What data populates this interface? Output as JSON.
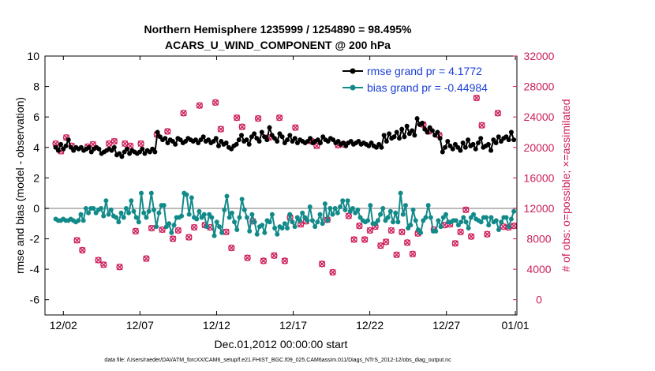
{
  "chart_data": {
    "type": "line",
    "title": "Northern Hemisphere 1235999 / 1254890 = 98.495%",
    "subtitle": "ACARS_U_WIND_COMPONENT @ 200 hPa",
    "xlabel": "Dec.01,2012 00:00:00 start",
    "ylabel_left": "rmse and bias (model - observation)",
    "ylabel_right": "# of obs: o=possible; ×=assimilated",
    "footnote": "data file: /Users/raeder/DAI/ATM_forcXX/CAM6_setup/f.e21.FHIST_BGC.f09_025.CAM6assim.011/Diags_NTrS_2012-12/obs_diag_output.nc",
    "xlim": [
      0.3,
      31.1
    ],
    "ylim_left": [
      -7,
      10
    ],
    "ylim_right": [
      -2000,
      32000
    ],
    "x_ticks": [
      1.5,
      6.5,
      11.5,
      16.5,
      21.5,
      26.5,
      31
    ],
    "x_tick_labels": [
      "12/02",
      "12/07",
      "12/12",
      "12/17",
      "12/22",
      "12/27",
      "01/01"
    ],
    "y_left_ticks": [
      -6,
      -4,
      -2,
      0,
      2,
      4,
      6,
      8,
      10
    ],
    "y_right_ticks": [
      0,
      4000,
      8000,
      12000,
      16000,
      20000,
      24000,
      28000,
      32000
    ],
    "zero_line": 0,
    "colors": {
      "rmse": "#000000",
      "bias": "#138a8a",
      "obs": "#cc1e5c",
      "zero": "#bbbbbb",
      "legend_text": "#1a3ed6"
    },
    "series": [
      {
        "name": "rmse",
        "legend": "rmse grand pr = 4.1772",
        "axis": "left",
        "values": [
          4.0,
          3.8,
          4.2,
          3.9,
          4.1,
          4.5,
          4.0,
          3.8,
          4.0,
          3.9,
          4.0,
          3.8,
          3.9,
          4.0,
          3.7,
          3.9,
          4.0,
          3.9,
          3.6,
          3.7,
          3.8,
          3.9,
          3.8,
          4.0,
          3.5,
          3.6,
          3.4,
          3.7,
          3.9,
          3.6,
          3.8,
          3.7,
          3.6,
          3.7,
          3.9,
          3.6,
          3.8,
          3.7,
          3.9,
          3.7,
          5.0,
          4.7,
          4.5,
          4.6,
          4.3,
          4.5,
          4.4,
          4.2,
          4.6,
          4.5,
          4.3,
          4.4,
          4.6,
          4.5,
          4.4,
          4.5,
          4.3,
          4.5,
          4.7,
          4.4,
          4.5,
          4.3,
          4.4,
          4.6,
          4.1,
          4.4,
          4.2,
          4.3,
          4.0,
          3.9,
          4.1,
          4.2,
          4.5,
          4.8,
          4.4,
          4.5,
          4.2,
          4.7,
          4.9,
          4.6,
          4.4,
          5.0,
          4.7,
          4.5,
          5.3,
          4.8,
          4.6,
          4.4,
          4.9,
          4.7,
          4.3,
          4.5,
          4.8,
          4.4,
          4.6,
          4.3,
          4.5,
          4.4,
          4.3,
          4.4,
          4.6,
          4.3,
          4.4,
          4.5,
          4.3,
          4.7,
          4.5,
          4.4,
          4.6,
          4.5,
          4.3,
          4.4,
          4.2,
          4.3,
          4.1,
          4.3,
          4.4,
          4.2,
          4.3,
          4.4,
          4.2,
          4.3,
          4.2,
          4.1,
          4.3,
          4.1,
          4.0,
          4.2,
          4.0,
          4.8,
          4.4,
          4.9,
          4.6,
          4.7,
          5.0,
          4.6,
          5.2,
          4.7,
          5.4,
          4.9,
          5.1,
          4.8,
          5.9,
          5.5,
          5.6,
          5.2,
          5.0,
          5.3,
          5.1,
          4.8,
          5.0,
          4.6,
          3.7,
          4.0,
          4.4,
          4.1,
          3.9,
          4.2,
          4.0,
          3.8,
          4.3,
          4.0,
          4.5,
          4.1,
          4.2,
          3.9,
          4.3,
          4.6,
          4.0,
          4.1,
          4.2,
          3.8,
          4.5,
          4.3,
          4.7,
          4.4,
          4.6,
          4.7,
          4.5,
          5.0,
          4.5
        ]
      },
      {
        "name": "bias",
        "legend": "bias grand pr = -0.44984",
        "axis": "left",
        "values": [
          -0.7,
          -0.8,
          -0.8,
          -0.7,
          -0.8,
          -0.8,
          -0.7,
          -0.8,
          -0.9,
          -0.8,
          -0.4,
          -0.8,
          0.0,
          -0.3,
          0.0,
          0.0,
          -0.3,
          -0.1,
          0.0,
          -0.5,
          0.5,
          -0.4,
          -0.1,
          -0.5,
          -0.6,
          -0.9,
          -0.3,
          -0.6,
          0.0,
          -0.3,
          0.5,
          -0.2,
          -0.6,
          -0.9,
          1.0,
          -0.3,
          -0.6,
          -0.2,
          1.0,
          -0.1,
          -1.2,
          -0.3,
          0.2,
          0.2,
          -1.2,
          -1.0,
          -1.6,
          -1.1,
          -0.6,
          -0.6,
          -0.5,
          1.0,
          0.9,
          -0.4,
          0.7,
          -0.6,
          -0.7,
          -0.2,
          -0.6,
          -0.4,
          -1.2,
          -0.4,
          -0.6,
          -1.8,
          -0.9,
          -1.2,
          -1.6,
          -0.1,
          0.8,
          -0.6,
          -0.3,
          -0.9,
          -1.4,
          -0.6,
          0.6,
          -0.1,
          -0.6,
          -1.5,
          -0.4,
          -0.9,
          -1.7,
          -1.2,
          -1.1,
          -1.6,
          -0.8,
          -0.9,
          -0.4,
          -1.3,
          -1.7,
          -1.2,
          -1.3,
          -1.0,
          -1.3,
          -0.4,
          -0.9,
          -1.2,
          -0.6,
          -0.8,
          -0.3,
          -0.6,
          -0.8,
          0.1,
          -0.8,
          -1.2,
          -0.9,
          -0.4,
          -1.0,
          0.3,
          -0.8,
          0.0,
          -0.4,
          0.0,
          -0.3,
          0.1,
          0.5,
          -0.1,
          0.5,
          -0.2,
          0.0,
          -0.3,
          -0.1,
          -0.6,
          -0.8,
          -0.9,
          -0.8,
          0.2,
          -1.0,
          -1.0,
          -0.8,
          -0.4,
          0.0,
          -0.8,
          -0.6,
          -0.2,
          -0.9,
          -0.3,
          -0.9,
          1.0,
          -0.4,
          0.2,
          -1.3,
          -1.1,
          -0.1,
          -0.8,
          -1.4,
          -1.6,
          -0.8,
          -0.6,
          0.2,
          -0.6,
          -1.5,
          -1.5,
          -0.8,
          -1.2,
          -0.6,
          -0.4,
          -0.9,
          -0.9,
          -0.8,
          -0.8,
          -1.1,
          -0.9,
          -0.6,
          -0.9,
          -1.3,
          -0.6,
          -0.4,
          -0.7,
          -0.8,
          -0.9,
          -0.6,
          -0.6,
          -1.1,
          -0.6,
          -0.9,
          -0.8,
          -1.4,
          -0.9,
          -0.6,
          -0.6,
          -1.2,
          -0.7,
          -0.2
        ]
      },
      {
        "name": "obs_possible",
        "legend": "",
        "axis": "right",
        "values": [
          20500,
          19500,
          21300,
          20200,
          7800,
          6500,
          20100,
          20400,
          5200,
          4600,
          20500,
          20800,
          4300,
          20500,
          20200,
          9000,
          20500,
          5400,
          9400,
          21700,
          9200,
          22100,
          8000,
          9100,
          24500,
          8200,
          9500,
          25500,
          9800,
          9500,
          25900,
          22400,
          8900,
          6800,
          23900,
          22700,
          5500,
          10300,
          23800,
          5100,
          21300,
          5800,
          23900,
          5100,
          10800,
          22600,
          9900,
          10300,
          20800,
          20200,
          4700,
          10500,
          3600,
          20300,
          20400,
          11000,
          7900,
          9700,
          7900,
          9100,
          9600,
          7100,
          7600,
          9100,
          5900,
          8900,
          7500,
          6000,
          8700,
          23000,
          22100,
          9200,
          21600,
          9800,
          9900,
          7400,
          8900,
          11800,
          8300,
          26500,
          22900,
          8600,
          27500,
          24500,
          9600,
          9500,
          9700
        ]
      }
    ]
  }
}
